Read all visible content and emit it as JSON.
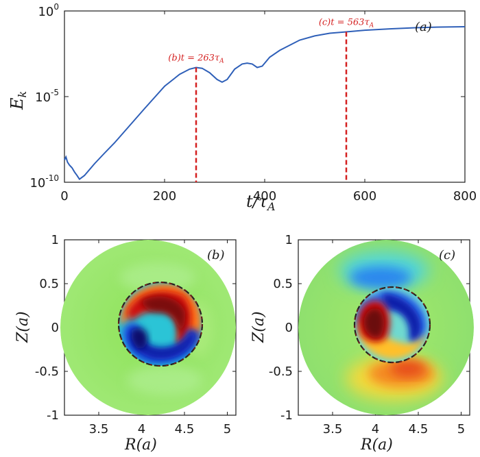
{
  "chart_data": [
    {
      "type": "line",
      "panel_label": "(a)",
      "xlabel": "t/τ_A",
      "ylabel": "E_k",
      "yscale": "log",
      "xlim": [
        0,
        800
      ],
      "ylim": [
        1e-10,
        1
      ],
      "x_ticks": [
        "0",
        "200",
        "400",
        "600",
        "800"
      ],
      "y_ticks": [
        {
          "base": "10",
          "exp": "0"
        },
        {
          "base": "10",
          "exp": "-5"
        },
        {
          "base": "10",
          "exp": "-10"
        }
      ],
      "line_color": "#2e5fb8",
      "series": [
        {
          "x": [
            0,
            3,
            6,
            10,
            15,
            20,
            25,
            30,
            40,
            60,
            80,
            100,
            130,
            160,
            200,
            230,
            250,
            263,
            275,
            290,
            305,
            315,
            325,
            340,
            355,
            365,
            375,
            385,
            395,
            410,
            430,
            450,
            470,
            500,
            530,
            563,
            600,
            650,
            700,
            750,
            800
          ],
          "y": [
            2e-09,
            3e-09,
            1.5e-09,
            1e-09,
            7e-10,
            4e-10,
            2.5e-10,
            1.5e-10,
            2.5e-10,
            1.2e-09,
            5e-09,
            2e-08,
            2e-07,
            2e-06,
            4e-05,
            0.0002,
            0.0004,
            0.0005,
            0.00045,
            0.00025,
            0.0001,
            7e-05,
            0.0001,
            0.0004,
            0.0008,
            0.0009,
            0.0008,
            0.0005,
            0.0006,
            0.002,
            0.005,
            0.01,
            0.02,
            0.035,
            0.05,
            0.06,
            0.075,
            0.09,
            0.105,
            0.115,
            0.12
          ]
        }
      ],
      "markers": [
        {
          "x": 263,
          "prefix": "(b)",
          "label": "t = 263",
          "sub": "A",
          "color": "#d41f1f"
        },
        {
          "x": 563,
          "prefix": "(c)",
          "label": "t = 563",
          "sub": "A",
          "color": "#d41f1f"
        }
      ]
    },
    {
      "type": "heatmap",
      "panel_label": "(b)",
      "xlabel": "R(a)",
      "ylabel": "Z(a)",
      "x_ticks": [
        "3.5",
        "4",
        "4.5",
        "5"
      ],
      "y_ticks": [
        "1",
        "0.5",
        "0",
        "-0.5",
        "-1"
      ],
      "xlim": [
        3.1,
        5.1
      ],
      "ylim": [
        -1,
        1
      ],
      "domain_center": [
        4.1,
        0
      ],
      "domain_radius": 1.0,
      "surface_radius": 0.5
    },
    {
      "type": "heatmap",
      "panel_label": "(c)",
      "xlabel": "R(a)",
      "ylabel": "Z(a)",
      "x_ticks": [
        "3.5",
        "4",
        "4.5",
        "5"
      ],
      "y_ticks": [
        "1",
        "0.5",
        "0",
        "-0.5",
        "-1"
      ],
      "xlim": [
        3.1,
        5.1
      ],
      "ylim": [
        -1,
        1
      ],
      "domain_center": [
        4.1,
        0
      ],
      "domain_radius": 1.0,
      "surface_radius": 0.5
    }
  ]
}
